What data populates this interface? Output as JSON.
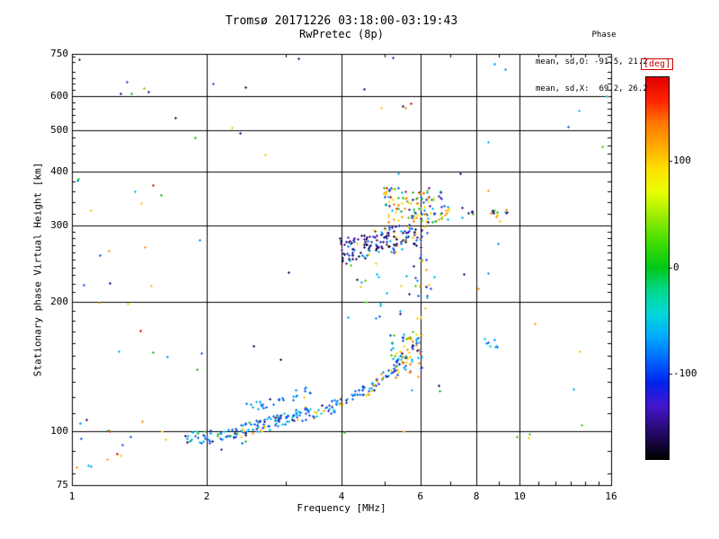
{
  "chart_data": {
    "type": "scatter",
    "title": "Tromsø 20171226 03:18:00-03:19:43",
    "subtitle": "RwPretec (8p)",
    "annotation": {
      "heading": "Phase",
      "lines": [
        "mean, sd,O: -91.5, 21.2",
        "mean, sd,X:  69.2, 26.2"
      ]
    },
    "xlabel": "Frequency [MHz]",
    "ylabel": "Stationary phase Virtual Height [km]",
    "x_scale": "log",
    "x_range": [
      1,
      16
    ],
    "x_ticks": [
      1,
      2,
      4,
      6,
      8,
      10,
      16
    ],
    "x_gridlines": [
      2,
      4,
      6,
      8,
      10
    ],
    "x_minor": [
      3,
      5,
      7,
      9,
      11,
      12,
      13,
      14,
      15
    ],
    "y_scale": "log",
    "y_range": [
      75,
      750
    ],
    "y_ticks": [
      75,
      100,
      200,
      300,
      400,
      500,
      600,
      750
    ],
    "y_gridlines": [
      100,
      200,
      300,
      400,
      500,
      600
    ],
    "y_minor": [
      80,
      90,
      110,
      120,
      130,
      140,
      150,
      160,
      170,
      180,
      190,
      210,
      220,
      230,
      240,
      250,
      260,
      270,
      280,
      290,
      320,
      340,
      360,
      380,
      420,
      440,
      460,
      480,
      520,
      540,
      560,
      580,
      620,
      640,
      660,
      680,
      720,
      740
    ],
    "grid": true,
    "marker": "plus",
    "marker_size": 3,
    "colorbar": {
      "label": "[deg]",
      "label_color": "#cc0000",
      "range": [
        -180,
        180
      ],
      "ticks": [
        100,
        0,
        -100
      ],
      "stops": [
        [
          0.0,
          "#e00000"
        ],
        [
          0.06,
          "#ff2200"
        ],
        [
          0.12,
          "#ff7700"
        ],
        [
          0.18,
          "#ffaa00"
        ],
        [
          0.24,
          "#ffe000"
        ],
        [
          0.3,
          "#eaff00"
        ],
        [
          0.36,
          "#9fee00"
        ],
        [
          0.43,
          "#44dd00"
        ],
        [
          0.5,
          "#00c818"
        ],
        [
          0.56,
          "#00d890"
        ],
        [
          0.62,
          "#00d8d8"
        ],
        [
          0.68,
          "#00aaff"
        ],
        [
          0.74,
          "#0066ff"
        ],
        [
          0.8,
          "#0022ee"
        ],
        [
          0.86,
          "#4416cc"
        ],
        [
          0.92,
          "#2a0a77"
        ],
        [
          1.0,
          "#000000"
        ]
      ]
    },
    "seed": 42,
    "clusters": [
      {
        "name": "e-trace-low",
        "n": 55,
        "f": [
          1.78,
          2.45
        ],
        "h": [
          94,
          101
        ],
        "colors": [
          "#2255ee",
          "#2255ee",
          "#0077ee",
          "#0099ff",
          "#00bbee",
          "#2244dd",
          "#1a1060",
          "#22bb22"
        ]
      },
      {
        "name": "e-trace-main",
        "n": 200,
        "jitter": 4,
        "path": [
          [
            2.3,
            100
          ],
          [
            2.8,
            105
          ],
          [
            3.2,
            109
          ],
          [
            3.6,
            112
          ],
          [
            4.0,
            116
          ],
          [
            4.4,
            122
          ],
          [
            4.8,
            130
          ],
          [
            5.2,
            139
          ],
          [
            5.6,
            150
          ],
          [
            5.9,
            162
          ]
        ],
        "colors": [
          "#2255ee",
          "#2255ee",
          "#1a5cf0",
          "#0077ee",
          "#0099ff",
          "#0099ff",
          "#00bbee",
          "#2244dd",
          "#2244dd",
          "#ffcc00",
          "#ff9900",
          "#1a1060",
          "#00ccdd"
        ]
      },
      {
        "name": "e-trace-upper-branch",
        "n": 28,
        "jitter": 3,
        "path": [
          [
            2.45,
            113
          ],
          [
            2.9,
            118
          ],
          [
            3.45,
            126
          ]
        ],
        "colors": [
          "#2255ee",
          "#0077ee",
          "#0099ff",
          "#00bbee"
        ]
      },
      {
        "name": "cusp-knot",
        "n": 65,
        "f": [
          5.1,
          6.05
        ],
        "h": [
          133,
          168
        ],
        "colors": [
          "#2255ee",
          "#0099ff",
          "#00bbee",
          "#ffdd00",
          "#ffcc00",
          "#ff9900",
          "#ff7700",
          "#55cc00",
          "#2244dd",
          "#1a1060"
        ]
      },
      {
        "name": "f-region-dark-cloud",
        "n": 150,
        "jitter": 20,
        "path": [
          [
            3.95,
            262
          ],
          [
            4.9,
            275
          ],
          [
            5.9,
            290
          ]
        ],
        "colors": [
          "#1a1060",
          "#1a1060",
          "#2a1580",
          "#2a1580",
          "#331177",
          "#120a44",
          "#120a44",
          "#2244dd",
          "#2244dd",
          "#5516aa",
          "#5516aa",
          "#0077ee",
          "#00bbee",
          "#ffcc00"
        ]
      },
      {
        "name": "f-region-mixed-band",
        "n": 115,
        "f": [
          4.95,
          6.7
        ],
        "h": [
          305,
          368
        ],
        "colors": [
          "#ffdd00",
          "#ffcc00",
          "#ff9900",
          "#ff7700",
          "#55cc00",
          "#22bb22",
          "#00aa55",
          "#00bbee",
          "#0099ff",
          "#2255ee",
          "#2244dd",
          "#5516aa",
          "#331177",
          "#dd1100",
          "#eeee00"
        ]
      },
      {
        "name": "f-region-right-tail",
        "n": 26,
        "f": [
          6.6,
          9.7
        ],
        "h": [
          306,
          334
        ],
        "colors": [
          "#ff9900",
          "#55cc00",
          "#2255ee",
          "#331177",
          "#00bbee",
          "#ffcc00",
          "#2a1580"
        ]
      },
      {
        "name": "six-mhz-column",
        "n": 20,
        "f": [
          5.95,
          6.2
        ],
        "h": [
          185,
          335
        ],
        "colors": [
          "#2255ee",
          "#ffcc00",
          "#00bbee",
          "#331177",
          "#55cc00",
          "#ff9900"
        ]
      },
      {
        "name": "mid-sparse",
        "n": 32,
        "f": [
          4.0,
          6.5
        ],
        "h": [
          170,
          245
        ],
        "colors": [
          "#2255ee",
          "#0099ff",
          "#ffcc00",
          "#00bbee",
          "#331177",
          "#55cc00"
        ]
      },
      {
        "name": "left-column-noise",
        "n": 34,
        "f": [
          1.02,
          1.6
        ],
        "h": [
          80,
          700
        ],
        "log_h": true,
        "colors": [
          "#00bbee",
          "#0099ff",
          "#2255ee",
          "#ffcc00",
          "#ff9900",
          "#22bb22",
          "#331177",
          "#dd1100"
        ]
      },
      {
        "name": "wide-noise",
        "n": 38,
        "f": [
          1.6,
          9.5
        ],
        "h": [
          78,
          740
        ],
        "log_h": true,
        "colors": [
          "#00bbee",
          "#0099ff",
          "#2255ee",
          "#ffcc00",
          "#ff9900",
          "#22bb22",
          "#331177",
          "#1a1060"
        ]
      },
      {
        "name": "right-noise",
        "n": 8,
        "f": [
          9.5,
          15.8
        ],
        "h": [
          90,
          650
        ],
        "log_h": true,
        "colors": [
          "#00bbee",
          "#2255ee",
          "#ffcc00",
          "#55cc00"
        ]
      },
      {
        "name": "nine-mhz-cyan",
        "n": 8,
        "f": [
          8.3,
          8.9
        ],
        "h": [
          156,
          166
        ],
        "colors": [
          "#00bbee",
          "#00ccdd",
          "#0099ff",
          "#2255ee"
        ]
      }
    ],
    "points": [
      [
        5.55,
        563,
        "#ff8800"
      ],
      [
        5.48,
        568,
        "#331177"
      ],
      [
        5.72,
        577,
        "#dd2200"
      ],
      [
        5.2,
        735,
        "#2233aa"
      ],
      [
        1.04,
        730,
        "#223399"
      ],
      [
        1.45,
        625,
        "#88cc00"
      ],
      [
        1.48,
        612,
        "#223388"
      ],
      [
        15.6,
        598,
        "#00bbdd"
      ],
      [
        10.8,
        178,
        "#ffaa00"
      ],
      [
        8.6,
        321,
        "#ff8800"
      ],
      [
        8.9,
        323,
        "#44bb00"
      ],
      [
        2.15,
        91,
        "#223399"
      ],
      [
        1.2,
        86,
        "#ffaa00"
      ],
      [
        1.1,
        83,
        "#00aaff"
      ],
      [
        9.85,
        97,
        "#44cc00"
      ],
      [
        1.62,
        96,
        "#ffcc00"
      ]
    ]
  }
}
